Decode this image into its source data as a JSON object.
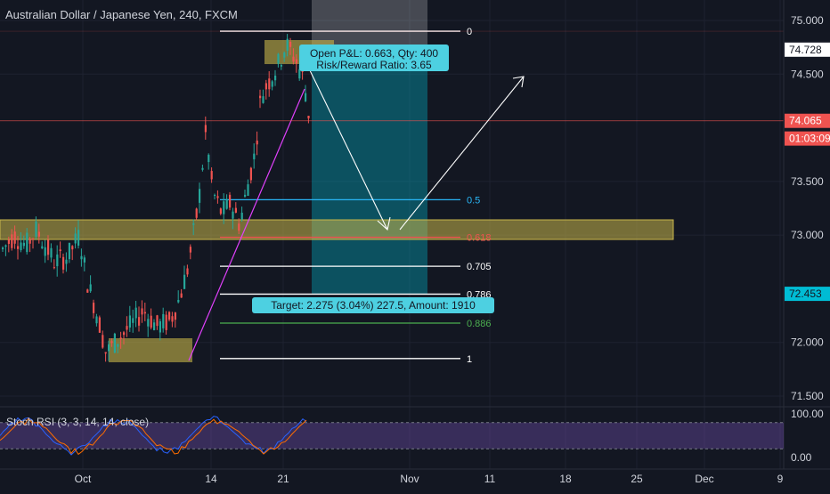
{
  "chart_data": {
    "type": "candlestick",
    "title": "Australian Dollar / Japanese Yen, 240, FXCM",
    "y_ticks": [
      "75.000",
      "74.500",
      "73.500",
      "73.000",
      "72.000",
      "71.500"
    ],
    "x_ticks": [
      "Oct",
      "14",
      "21",
      "Nov",
      "11",
      "18",
      "25",
      "Dec",
      "9"
    ],
    "ylim": [
      71.4,
      75.2
    ],
    "price_labels": [
      {
        "value": 74.728,
        "text": "74.728",
        "color": "#ffffff",
        "text_color": "#131722"
      },
      {
        "value": 74.065,
        "text": "74.065",
        "color": "#ef5350",
        "text_color": "#ffffff"
      },
      {
        "value": 73.9,
        "text": "01:03:09",
        "color": "#ef5350",
        "text_color": "#ffffff"
      },
      {
        "value": 72.453,
        "text": "72.453",
        "color": "#00bcd4",
        "text_color": "#131722"
      }
    ],
    "fib_levels": [
      {
        "label": "0",
        "price": 74.9,
        "color": "#ffffff"
      },
      {
        "label": "0.5",
        "price": 73.33,
        "color": "#29b6f6"
      },
      {
        "label": "0.618",
        "price": 72.98,
        "color": "#ef5350"
      },
      {
        "label": "0.705",
        "price": 72.71,
        "color": "#ffffff"
      },
      {
        "label": "0.786",
        "price": 72.45,
        "color": "#ffffff"
      },
      {
        "label": "0.886",
        "price": 72.18,
        "color": "#4caf50"
      },
      {
        "label": "1",
        "price": 71.85,
        "color": "#ffffff"
      }
    ],
    "position_info": {
      "pnl": "Open P&L: 0.663, Qty: 400",
      "rr": "Risk/Reward Ratio: 3.65",
      "target": "Target: 2.275 (3.04%) 227.5, Amount: 1910"
    },
    "indicator": {
      "label": "Stoch RSI (3, 3, 14, 14, close)",
      "y_ticks": [
        "100.00",
        "0.00"
      ],
      "ylim": [
        0,
        100
      ]
    },
    "colors": {
      "up": "#26a69a",
      "down": "#ef5350",
      "zone": "#c8b64a",
      "target_zone": "#00bcd4",
      "trendline": "#e040fb"
    }
  }
}
